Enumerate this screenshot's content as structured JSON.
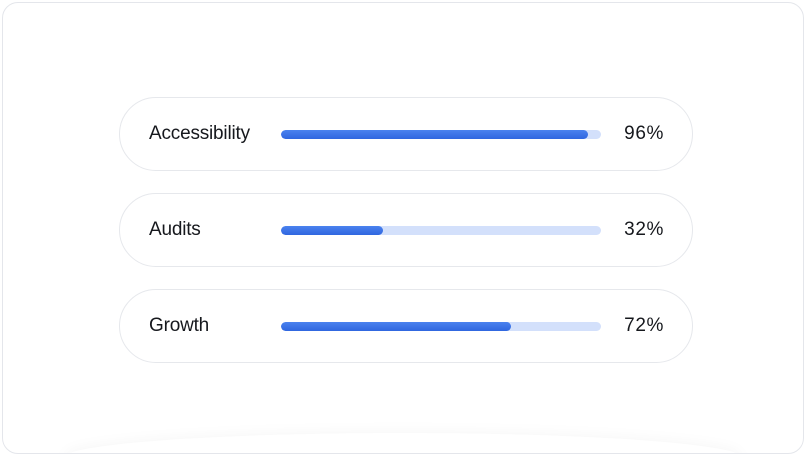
{
  "metrics": [
    {
      "label": "Accessibility",
      "percent_text": "96%",
      "value": 96
    },
    {
      "label": "Audits",
      "percent_text": "32%",
      "value": 32
    },
    {
      "label": "Growth",
      "percent_text": "72%",
      "value": 72
    }
  ],
  "colors": {
    "bar_fill": "#3a72e8",
    "bar_track": "#d3e0fb",
    "border": "#e6e8ec",
    "text": "#16181d"
  }
}
